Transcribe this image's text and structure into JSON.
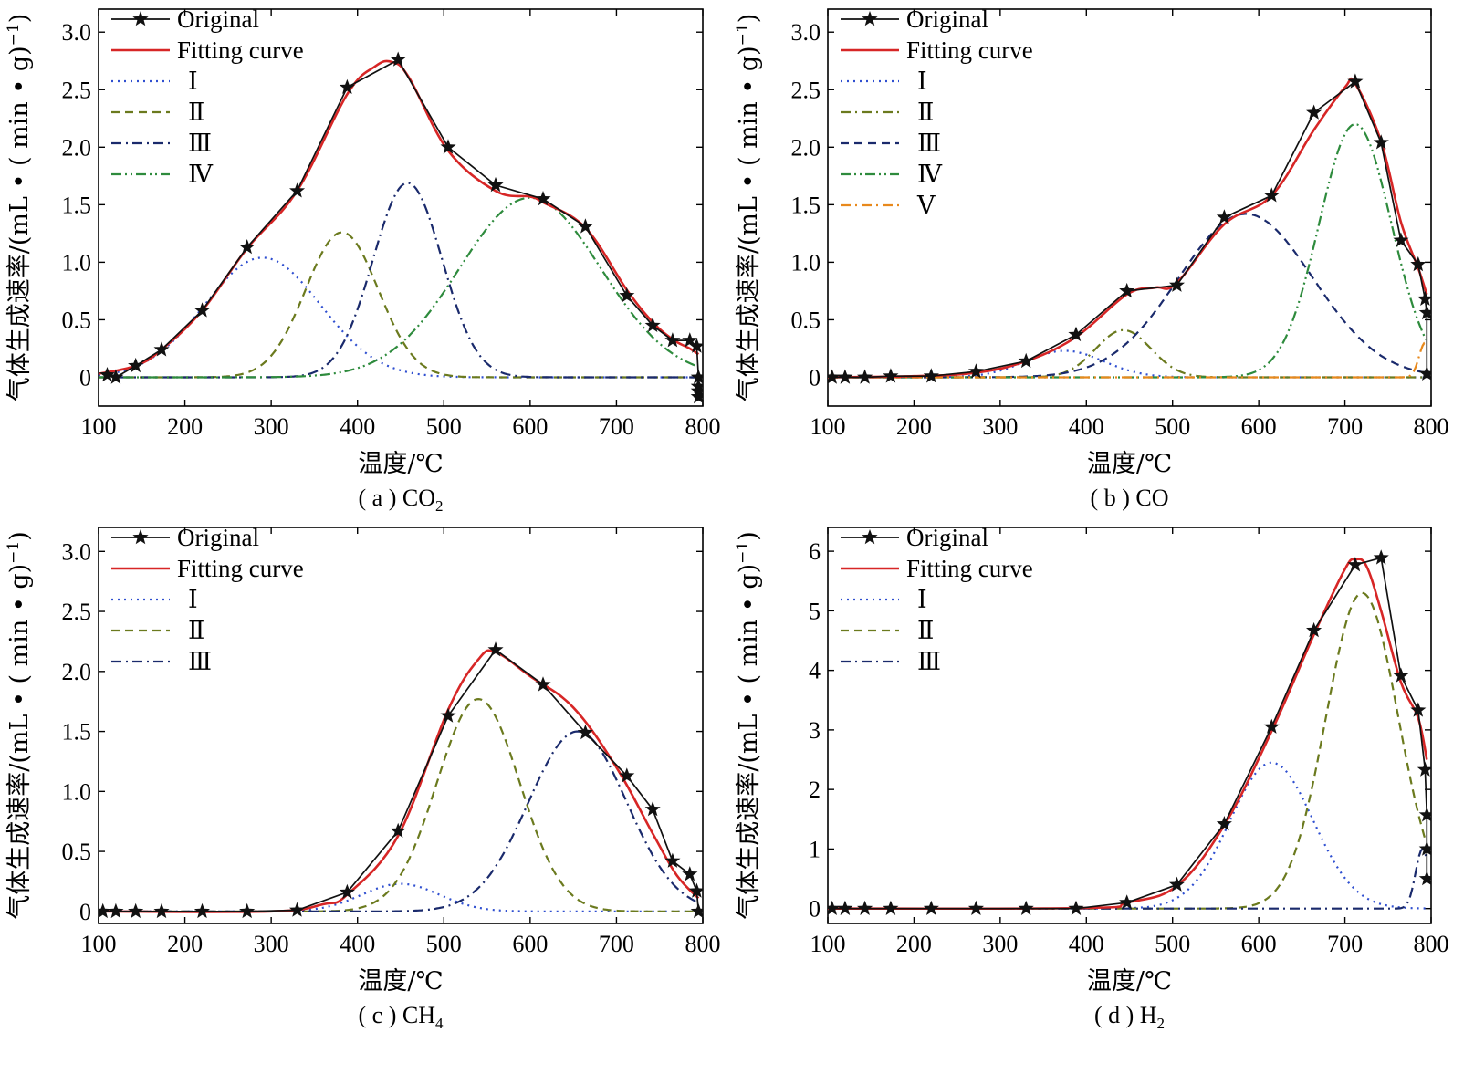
{
  "chart_data": [
    {
      "type": "line",
      "caption": "( a ) CO",
      "caption_sub": "2",
      "xlabel": "温度/℃",
      "ylabel": "气体生成速率/(mL • ( min • g)",
      "ylabel_sup": "−1",
      "ylabel_tail": ")",
      "xlim": [
        100,
        800
      ],
      "ylim": [
        -0.25,
        3.2
      ],
      "xticks": [
        100,
        200,
        300,
        400,
        500,
        600,
        700,
        800
      ],
      "yticks": [
        "0",
        "0.5",
        "1.0",
        "1.5",
        "2.0",
        "2.5",
        "3.0"
      ],
      "ytick_values": [
        0,
        0.5,
        1.0,
        1.5,
        2.0,
        2.5,
        3.0
      ],
      "legend_position": "top-left",
      "legend": [
        "Original",
        "Fitting curve",
        "Ⅰ",
        "Ⅱ",
        "Ⅲ",
        "Ⅳ"
      ],
      "original": {
        "x": [
          110,
          120,
          143,
          173,
          220,
          272,
          330,
          388,
          447,
          505,
          560,
          615,
          664,
          712,
          742,
          765,
          785,
          793,
          795,
          795,
          795,
          795
        ],
        "y": [
          0.02,
          0.0,
          0.1,
          0.24,
          0.58,
          1.13,
          1.62,
          2.52,
          2.76,
          2.0,
          1.67,
          1.55,
          1.31,
          0.71,
          0.45,
          0.32,
          0.32,
          0.27,
          0.0,
          -0.08,
          -0.12,
          -0.17
        ]
      },
      "fit": {
        "x": [
          100,
          143,
          173,
          220,
          272,
          330,
          388,
          420,
          440,
          460,
          505,
          560,
          600,
          615,
          664,
          712,
          742,
          765,
          785,
          795
        ],
        "y": [
          0.03,
          0.1,
          0.24,
          0.58,
          1.12,
          1.62,
          2.46,
          2.7,
          2.74,
          2.6,
          1.97,
          1.62,
          1.57,
          1.52,
          1.3,
          0.76,
          0.48,
          0.33,
          0.25,
          0.2
        ]
      },
      "components": [
        {
          "name": "Ⅰ",
          "color": "#2f4fd0",
          "dash": "dot",
          "center": 290,
          "height": 1.04,
          "width": 67
        },
        {
          "name": "Ⅱ",
          "color": "#6b7a1e",
          "dash": "dash",
          "center": 382,
          "height": 1.26,
          "width": 42
        },
        {
          "name": "Ⅲ",
          "color": "#1a2a6c",
          "dash": "dashdot",
          "center": 458,
          "height": 1.69,
          "width": 40
        },
        {
          "name": "Ⅳ",
          "color": "#2e8b3d",
          "dash": "dashdotdot",
          "center": 600,
          "height": 1.56,
          "width": 82
        }
      ]
    },
    {
      "type": "line",
      "caption": "( b ) CO",
      "caption_sub": "",
      "xlabel": "温度/℃",
      "ylabel": "气体生成速率/(mL • ( min • g)",
      "ylabel_sup": "−1",
      "ylabel_tail": ")",
      "xlim": [
        100,
        800
      ],
      "ylim": [
        -0.25,
        3.2
      ],
      "xticks": [
        100,
        200,
        300,
        400,
        500,
        600,
        700,
        800
      ],
      "yticks": [
        "0",
        "0.5",
        "1.0",
        "1.5",
        "2.0",
        "2.5",
        "3.0"
      ],
      "ytick_values": [
        0,
        0.5,
        1.0,
        1.5,
        2.0,
        2.5,
        3.0
      ],
      "legend_position": "top-left",
      "legend": [
        "Original",
        "Fitting curve",
        "Ⅰ",
        "Ⅱ",
        "Ⅲ",
        "Ⅳ",
        "Ⅴ"
      ],
      "original": {
        "x": [
          105,
          120,
          143,
          173,
          220,
          272,
          330,
          388,
          447,
          505,
          560,
          615,
          664,
          712,
          742,
          765,
          785,
          793,
          795,
          795
        ],
        "y": [
          0.0,
          0.0,
          0.0,
          0.01,
          0.01,
          0.05,
          0.14,
          0.37,
          0.75,
          0.8,
          1.39,
          1.58,
          2.3,
          2.57,
          2.04,
          1.19,
          0.98,
          0.68,
          0.56,
          0.03
        ]
      },
      "fit": {
        "x": [
          100,
          200,
          272,
          330,
          388,
          447,
          480,
          505,
          560,
          615,
          664,
          700,
          712,
          742,
          765,
          785,
          795
        ],
        "y": [
          0.0,
          0.01,
          0.04,
          0.14,
          0.35,
          0.72,
          0.78,
          0.82,
          1.33,
          1.58,
          2.15,
          2.52,
          2.55,
          2.05,
          1.35,
          0.95,
          0.72
        ]
      },
      "components": [
        {
          "name": "Ⅰ",
          "color": "#2f4fd0",
          "dash": "dot",
          "center": 375,
          "height": 0.23,
          "width": 45
        },
        {
          "name": "Ⅱ",
          "color": "#6b7a1e",
          "dash": "dashdot",
          "center": 443,
          "height": 0.41,
          "width": 32
        },
        {
          "name": "Ⅲ",
          "color": "#1a2a6c",
          "dash": "dash",
          "center": 585,
          "height": 1.42,
          "width": 78
        },
        {
          "name": "Ⅳ",
          "color": "#2e8b3d",
          "dash": "dashdotdot",
          "center": 712,
          "height": 2.2,
          "width": 42
        },
        {
          "name": "Ⅴ",
          "color": "#e8891c",
          "dash": "dashdot",
          "center": 793,
          "height": 0.3,
          "width": 7
        }
      ]
    },
    {
      "type": "line",
      "caption": "( c ) CH",
      "caption_sub": "4",
      "xlabel": "温度/℃",
      "ylabel": "气体生成速率/(mL • ( min • g)",
      "ylabel_sup": "−1",
      "ylabel_tail": ")",
      "xlim": [
        100,
        800
      ],
      "ylim": [
        -0.1,
        3.2
      ],
      "xticks": [
        100,
        200,
        300,
        400,
        500,
        600,
        700,
        800
      ],
      "yticks": [
        "0",
        "0.5",
        "1.0",
        "1.5",
        "2.0",
        "2.5",
        "3.0"
      ],
      "ytick_values": [
        0,
        0.5,
        1.0,
        1.5,
        2.0,
        2.5,
        3.0
      ],
      "legend_position": "top-left",
      "legend": [
        "Original",
        "Fitting curve",
        "Ⅰ",
        "Ⅱ",
        "Ⅲ"
      ],
      "original": {
        "x": [
          105,
          120,
          143,
          173,
          220,
          272,
          330,
          388,
          447,
          505,
          560,
          615,
          664,
          712,
          742,
          765,
          785,
          793,
          795
        ],
        "y": [
          0.0,
          0.0,
          0.0,
          0.0,
          0.0,
          0.0,
          0.01,
          0.16,
          0.67,
          1.63,
          2.18,
          1.89,
          1.49,
          1.13,
          0.85,
          0.42,
          0.31,
          0.17,
          0.0
        ]
      },
      "fit": {
        "x": [
          100,
          300,
          360,
          388,
          447,
          505,
          540,
          560,
          600,
          650,
          700,
          742,
          770,
          795
        ],
        "y": [
          0.0,
          0.0,
          0.06,
          0.14,
          0.63,
          1.68,
          2.1,
          2.16,
          1.96,
          1.7,
          1.2,
          0.65,
          0.3,
          0.11
        ]
      },
      "components": [
        {
          "name": "Ⅰ",
          "color": "#2f4fd0",
          "dash": "dot",
          "center": 450,
          "height": 0.23,
          "width": 45
        },
        {
          "name": "Ⅱ",
          "color": "#6b7a1e",
          "dash": "dash",
          "center": 540,
          "height": 1.77,
          "width": 48
        },
        {
          "name": "Ⅲ",
          "color": "#1a2a6c",
          "dash": "dashdot",
          "center": 655,
          "height": 1.5,
          "width": 57
        }
      ]
    },
    {
      "type": "line",
      "caption": "( d ) H",
      "caption_sub": "2",
      "xlabel": "温度/℃",
      "ylabel": "气体生成速率/(mL • ( min • g)",
      "ylabel_sup": "−1",
      "ylabel_tail": ")",
      "xlim": [
        100,
        800
      ],
      "ylim": [
        -0.25,
        6.4
      ],
      "xticks": [
        100,
        200,
        300,
        400,
        500,
        600,
        700,
        800
      ],
      "yticks": [
        "0",
        "1",
        "2",
        "3",
        "4",
        "5",
        "6"
      ],
      "ytick_values": [
        0,
        1,
        2,
        3,
        4,
        5,
        6
      ],
      "legend_position": "top-left",
      "legend": [
        "Original",
        "Fitting curve",
        "Ⅰ",
        "Ⅱ",
        "Ⅲ"
      ],
      "original": {
        "x": [
          105,
          120,
          143,
          173,
          220,
          272,
          330,
          388,
          447,
          505,
          560,
          615,
          664,
          712,
          742,
          765,
          785,
          793,
          795,
          795,
          795
        ],
        "y": [
          0.0,
          0.0,
          0.0,
          0.0,
          0.0,
          0.0,
          0.0,
          0.0,
          0.1,
          0.4,
          1.42,
          3.05,
          4.67,
          5.77,
          5.89,
          3.91,
          3.33,
          2.33,
          1.57,
          1.0,
          0.5
        ]
      },
      "fit": {
        "x": [
          100,
          400,
          447,
          505,
          560,
          615,
          664,
          700,
          712,
          725,
          742,
          765,
          785,
          795
        ],
        "y": [
          0.0,
          0.01,
          0.1,
          0.38,
          1.4,
          2.98,
          4.6,
          5.7,
          5.86,
          5.75,
          5.0,
          3.8,
          3.2,
          2.5
        ]
      },
      "components": [
        {
          "name": "Ⅰ",
          "color": "#2f4fd0",
          "dash": "dot",
          "center": 615,
          "height": 2.45,
          "width": 48
        },
        {
          "name": "Ⅱ",
          "color": "#6b7a1e",
          "dash": "dash",
          "center": 720,
          "height": 5.3,
          "width": 42
        },
        {
          "name": "Ⅲ",
          "color": "#1a2a6c",
          "dash": "dashdot",
          "center": 790,
          "height": 1.0,
          "width": 8
        }
      ]
    }
  ]
}
